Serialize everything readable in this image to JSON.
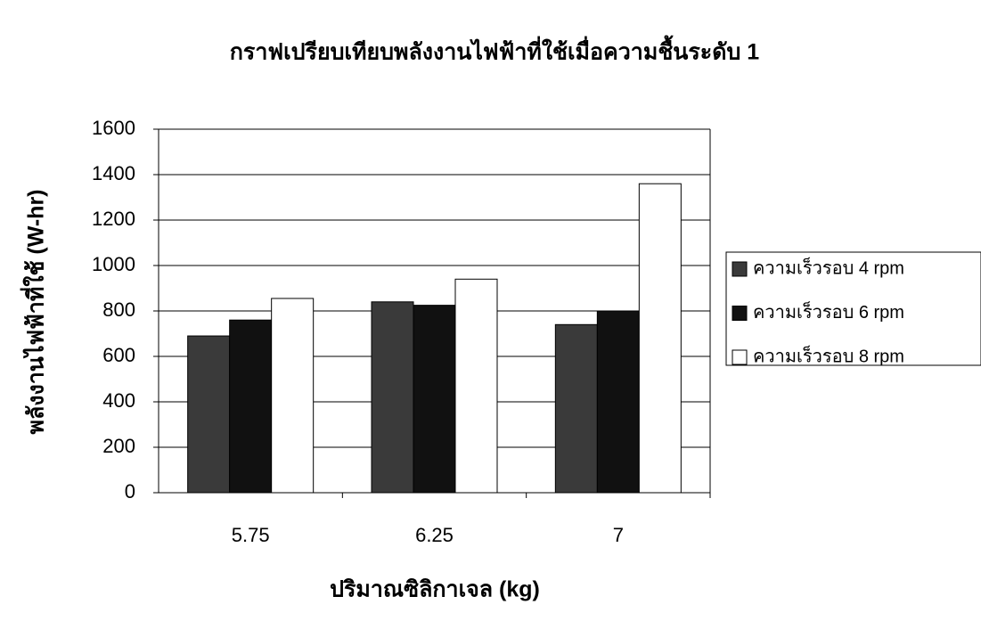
{
  "chart_data": {
    "type": "bar",
    "title": "กราฟเปรียบเทียบพลังงานไฟฟ้าที่ใช้เมื่อความชื้นระดับ 1",
    "x_label": "ปริมาณซิลิกาเจล (kg)",
    "y_label": "พลังงานไฟฟ้าที่ใช้ (W-hr)",
    "categories": [
      "5.75",
      "6.25",
      "7"
    ],
    "series": [
      {
        "name": "ความเร็วรอบ 4 rpm",
        "color": "#3a3a3a",
        "values": [
          690,
          840,
          740
        ]
      },
      {
        "name": "ความเร็วรอบ 6 rpm",
        "color": "#111111",
        "values": [
          760,
          825,
          800
        ]
      },
      {
        "name": "ความเร็วรอบ 8 rpm",
        "color": "#ffffff",
        "values": [
          855,
          940,
          1360
        ]
      }
    ],
    "ylim": [
      0,
      1600
    ],
    "yticks": [
      0,
      200,
      400,
      600,
      800,
      1000,
      1200,
      1400,
      1600
    ],
    "grid": true,
    "legend": "right"
  }
}
